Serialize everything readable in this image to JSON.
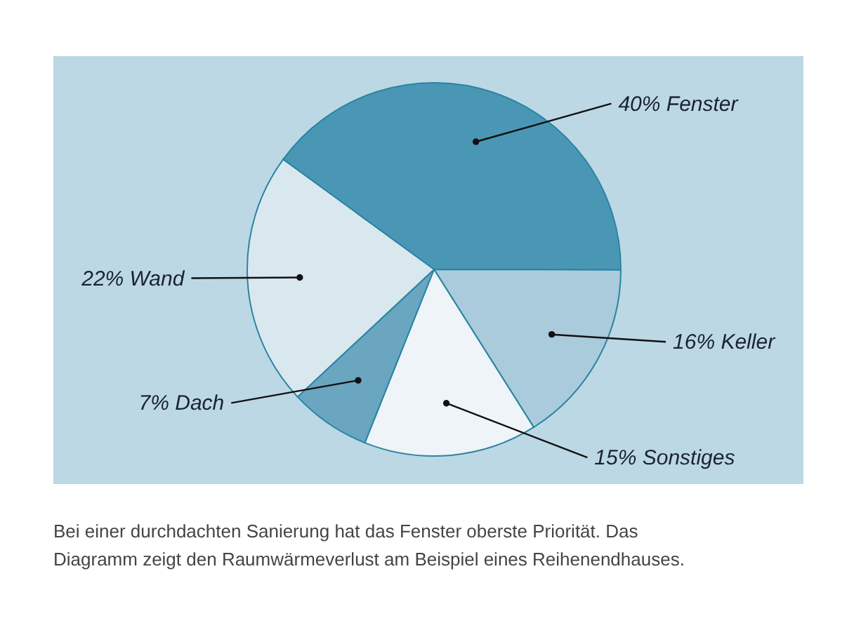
{
  "chart_data": {
    "type": "pie",
    "categories": [
      "Fenster",
      "Keller",
      "Sonstiges",
      "Dach",
      "Wand"
    ],
    "values": [
      40,
      16,
      15,
      7,
      22
    ],
    "value_labels": [
      "40%",
      "16%",
      "15%",
      "7%",
      "22%"
    ],
    "colors": [
      "#4a97b5",
      "#a9cbdb",
      "#eef4f7",
      "#6aa6bf",
      "#d9e8ef"
    ],
    "annotations": [
      "Bei einer durchdachten Sanierung hat das Fenster oberste Priorität. Das Diagramm zeigt den Raumwärmeverlust am Beispiel eines Reihenendhauses."
    ]
  }
}
